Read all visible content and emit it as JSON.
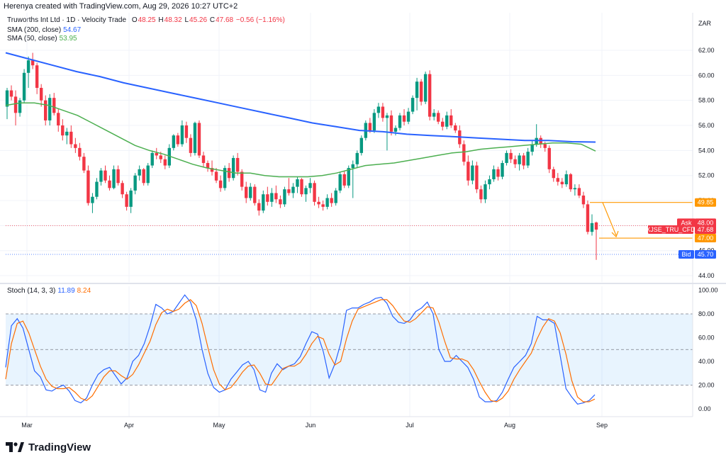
{
  "header": {
    "created_by": "Herenya created with TradingView.com, Aug 29, 2026 10:27 UTC+2"
  },
  "legend": {
    "symbol": "Truworths Int Ltd · 1D · Velocity Trade",
    "open_label": "O",
    "open": "48.25",
    "high_label": "H",
    "high": "48.32",
    "low_label": "L",
    "low": "45.26",
    "close_label": "C",
    "close": "47.68",
    "change": "−0.56 (−1.16%)",
    "sma200_label": "SMA (200, close)",
    "sma200_value": "54.67",
    "sma50_label": "SMA (50, close)",
    "sma50_value": "53.95",
    "stoch_label": "Stoch (14, 3, 3)",
    "stoch_k": "11.89",
    "stoch_d": "8.24"
  },
  "currency": "ZAR",
  "brand": "TradingView",
  "colors": {
    "up": "#089981",
    "down": "#f23645",
    "sma200": "#2962ff",
    "sma50": "#4caf50",
    "stoch_k": "#2962ff",
    "stoch_d": "#ff6d00",
    "target": "#ff9800",
    "ask": "#f23645",
    "bid": "#2962ff"
  },
  "chart_data": [
    {
      "type": "candlestick",
      "title": "Truworths Int Ltd · 1D · Velocity Trade",
      "ylim": [
        44,
        63
      ],
      "y_ticks": [
        "62.00",
        "60.00",
        "58.00",
        "56.00",
        "54.00",
        "52.00",
        "50.00",
        "48.00",
        "46.00",
        "44.00"
      ],
      "x_ticks": [
        "Mar",
        "Apr",
        "May",
        "Jun",
        "Jul",
        "Aug",
        "Sep"
      ],
      "price_tags": {
        "target_high": "49.85",
        "ask_label": "Ask",
        "ask": "48.00",
        "symbol_tag": "XJSE_TRU_CFD",
        "last": "47.68",
        "target_low": "47.00",
        "bid_label": "Bid",
        "bid": "45.70"
      },
      "candles": [
        [
          57.5,
          59.0,
          56.5,
          58.8
        ],
        [
          58.8,
          59.2,
          58.0,
          58.3
        ],
        [
          58.3,
          58.8,
          56.0,
          57.0
        ],
        [
          57.0,
          58.2,
          56.7,
          58.0
        ],
        [
          58.0,
          60.5,
          57.8,
          60.2
        ],
        [
          60.2,
          61.5,
          59.0,
          61.2
        ],
        [
          61.2,
          61.8,
          60.5,
          60.8
        ],
        [
          60.8,
          61.0,
          58.5,
          59.0
        ],
        [
          59.0,
          59.3,
          57.5,
          58.0
        ],
        [
          58.0,
          58.4,
          56.0,
          56.4
        ],
        [
          56.4,
          58.5,
          56.0,
          58.2
        ],
        [
          58.2,
          58.6,
          56.8,
          57.0
        ],
        [
          57.0,
          57.3,
          55.5,
          56.0
        ],
        [
          56.0,
          56.5,
          54.8,
          55.2
        ],
        [
          55.2,
          55.8,
          54.5,
          55.5
        ],
        [
          55.5,
          56.0,
          54.2,
          54.5
        ],
        [
          54.5,
          55.0,
          53.8,
          54.2
        ],
        [
          54.2,
          54.6,
          53.2,
          53.5
        ],
        [
          53.5,
          53.8,
          52.2,
          52.4
        ],
        [
          52.4,
          52.8,
          49.6,
          49.8
        ],
        [
          49.8,
          50.6,
          49.0,
          50.3
        ],
        [
          50.3,
          51.8,
          50.1,
          51.5
        ],
        [
          51.5,
          52.6,
          51.2,
          52.4
        ],
        [
          52.4,
          52.8,
          51.4,
          51.6
        ],
        [
          51.6,
          52.0,
          50.8,
          51.0
        ],
        [
          51.0,
          52.8,
          50.9,
          52.5
        ],
        [
          52.5,
          52.8,
          51.2,
          51.4
        ],
        [
          51.4,
          51.6,
          50.2,
          50.5
        ],
        [
          50.5,
          50.7,
          49.2,
          49.5
        ],
        [
          49.5,
          51.0,
          49.0,
          50.8
        ],
        [
          50.8,
          52.2,
          50.5,
          52.0
        ],
        [
          52.0,
          52.8,
          51.6,
          52.5
        ],
        [
          52.5,
          52.6,
          51.2,
          51.4
        ],
        [
          51.4,
          53.0,
          51.2,
          52.8
        ],
        [
          52.8,
          54.0,
          52.6,
          53.8
        ],
        [
          53.8,
          54.2,
          53.3,
          53.6
        ],
        [
          53.6,
          53.9,
          53.0,
          53.3
        ],
        [
          53.3,
          53.6,
          52.5,
          52.8
        ],
        [
          52.8,
          54.5,
          52.6,
          54.2
        ],
        [
          54.2,
          55.3,
          54.0,
          55.2
        ],
        [
          55.2,
          55.4,
          54.3,
          54.5
        ],
        [
          54.5,
          56.4,
          54.3,
          56.0
        ],
        [
          56.0,
          56.3,
          54.6,
          55.0
        ],
        [
          55.0,
          55.3,
          53.5,
          53.8
        ],
        [
          53.8,
          56.3,
          53.6,
          56.2
        ],
        [
          56.2,
          56.4,
          53.4,
          53.6
        ],
        [
          53.6,
          53.9,
          52.7,
          53.0
        ],
        [
          53.0,
          53.2,
          52.3,
          52.6
        ],
        [
          52.6,
          53.2,
          52.0,
          52.3
        ],
        [
          52.3,
          52.6,
          51.4,
          51.6
        ],
        [
          51.6,
          52.0,
          50.7,
          51.0
        ],
        [
          51.0,
          52.8,
          50.8,
          52.6
        ],
        [
          52.6,
          53.0,
          51.5,
          51.8
        ],
        [
          51.8,
          53.6,
          51.6,
          53.4
        ],
        [
          53.4,
          53.8,
          52.0,
          52.3
        ],
        [
          52.3,
          52.5,
          50.8,
          51.1
        ],
        [
          51.1,
          51.5,
          49.8,
          50.2
        ],
        [
          50.2,
          51.4,
          50.0,
          51.1
        ],
        [
          51.1,
          51.3,
          49.6,
          49.8
        ],
        [
          49.8,
          50.1,
          48.8,
          49.2
        ],
        [
          49.2,
          50.8,
          49.0,
          50.5
        ],
        [
          50.5,
          51.1,
          49.6,
          49.9
        ],
        [
          49.9,
          51.0,
          49.5,
          50.6
        ],
        [
          50.6,
          51.2,
          49.8,
          50.1
        ],
        [
          50.1,
          50.4,
          49.4,
          49.7
        ],
        [
          49.7,
          51.1,
          49.5,
          50.9
        ],
        [
          50.9,
          51.8,
          50.4,
          50.6
        ],
        [
          50.6,
          51.4,
          50.2,
          51.1
        ],
        [
          51.1,
          51.9,
          50.6,
          51.7
        ],
        [
          51.7,
          51.8,
          50.3,
          50.5
        ],
        [
          50.5,
          51.2,
          49.9,
          51.0
        ],
        [
          51.0,
          51.8,
          50.6,
          51.4
        ],
        [
          51.4,
          51.6,
          49.6,
          49.9
        ],
        [
          49.9,
          50.3,
          49.4,
          49.7
        ],
        [
          49.7,
          50.0,
          49.2,
          49.5
        ],
        [
          49.5,
          50.5,
          49.3,
          50.2
        ],
        [
          50.2,
          50.6,
          49.5,
          49.8
        ],
        [
          49.8,
          51.0,
          49.6,
          50.8
        ],
        [
          50.8,
          52.3,
          50.6,
          52.1
        ],
        [
          52.1,
          52.4,
          51.0,
          51.2
        ],
        [
          51.2,
          52.8,
          51.0,
          52.6
        ],
        [
          52.6,
          53.2,
          50.2,
          52.9
        ],
        [
          52.9,
          54.0,
          52.6,
          53.8
        ],
        [
          53.8,
          55.2,
          53.6,
          55.0
        ],
        [
          55.0,
          56.4,
          54.8,
          56.2
        ],
        [
          56.2,
          56.6,
          55.4,
          55.6
        ],
        [
          55.6,
          57.3,
          55.4,
          57.0
        ],
        [
          57.0,
          57.8,
          56.6,
          57.5
        ],
        [
          57.5,
          57.8,
          56.3,
          56.6
        ],
        [
          56.6,
          57.0,
          54.0,
          56.8
        ],
        [
          56.8,
          57.2,
          55.2,
          55.5
        ],
        [
          55.5,
          56.0,
          55.2,
          55.8
        ],
        [
          55.8,
          57.0,
          55.6,
          56.8
        ],
        [
          56.8,
          57.3,
          56.0,
          56.3
        ],
        [
          56.3,
          57.4,
          56.1,
          57.1
        ],
        [
          57.1,
          58.4,
          56.9,
          58.2
        ],
        [
          58.2,
          59.8,
          57.2,
          59.5
        ],
        [
          59.5,
          59.7,
          57.6,
          57.9
        ],
        [
          57.9,
          60.3,
          57.7,
          60.1
        ],
        [
          60.1,
          60.4,
          56.4,
          56.7
        ],
        [
          56.7,
          57.3,
          56.4,
          57.0
        ],
        [
          57.0,
          57.2,
          56.1,
          56.3
        ],
        [
          56.3,
          56.6,
          55.6,
          55.9
        ],
        [
          55.9,
          57.1,
          55.7,
          56.8
        ],
        [
          56.8,
          57.3,
          55.8,
          56.0
        ],
        [
          56.0,
          56.2,
          55.4,
          55.6
        ],
        [
          55.6,
          56.0,
          54.2,
          54.5
        ],
        [
          54.5,
          54.8,
          52.8,
          53.1
        ],
        [
          53.1,
          53.6,
          51.2,
          51.6
        ],
        [
          51.6,
          53.2,
          51.3,
          52.8
        ],
        [
          52.8,
          53.1,
          50.6,
          50.9
        ],
        [
          50.9,
          51.2,
          49.8,
          50.1
        ],
        [
          50.1,
          51.6,
          49.8,
          51.3
        ],
        [
          51.3,
          52.0,
          50.9,
          51.7
        ],
        [
          51.7,
          52.8,
          51.5,
          52.5
        ],
        [
          52.5,
          52.7,
          51.6,
          51.9
        ],
        [
          51.9,
          53.2,
          51.7,
          53.0
        ],
        [
          53.0,
          54.0,
          52.8,
          53.8
        ],
        [
          53.8,
          54.1,
          53.0,
          53.3
        ],
        [
          53.3,
          53.6,
          52.6,
          52.9
        ],
        [
          52.9,
          53.8,
          52.4,
          53.6
        ],
        [
          53.6,
          53.8,
          52.5,
          52.8
        ],
        [
          52.8,
          54.2,
          52.6,
          53.9
        ],
        [
          53.9,
          54.8,
          53.6,
          54.5
        ],
        [
          54.5,
          56.1,
          54.3,
          55.0
        ],
        [
          55.0,
          55.2,
          54.2,
          54.5
        ],
        [
          54.5,
          54.7,
          53.9,
          54.2
        ],
        [
          54.2,
          54.4,
          52.2,
          52.5
        ],
        [
          52.5,
          52.7,
          51.5,
          51.8
        ],
        [
          51.8,
          52.2,
          51.2,
          51.5
        ],
        [
          51.5,
          51.8,
          51.0,
          51.3
        ],
        [
          51.3,
          52.4,
          51.1,
          52.1
        ],
        [
          52.1,
          52.2,
          50.7,
          50.9
        ],
        [
          50.9,
          51.3,
          50.4,
          51.0
        ],
        [
          51.0,
          51.3,
          50.2,
          50.4
        ],
        [
          50.4,
          50.7,
          49.4,
          49.7
        ],
        [
          49.7,
          50.0,
          47.3,
          47.5
        ],
        [
          47.5,
          48.9,
          47.2,
          48.2
        ],
        [
          48.25,
          48.32,
          45.26,
          47.68
        ]
      ],
      "sma200": [
        61.8,
        61.3,
        60.8,
        60.3,
        59.9,
        59.4,
        59.0,
        58.6,
        58.2,
        57.8,
        57.4,
        57.0,
        56.6,
        56.2,
        55.9,
        55.6,
        55.5,
        55.3,
        55.2,
        55.1,
        55.0,
        54.9,
        54.8,
        54.8,
        54.7,
        54.67
      ],
      "sma50": [
        57.6,
        57.8,
        57.8,
        57.6,
        57.2,
        56.8,
        56.2,
        55.6,
        55.0,
        54.4,
        54.0,
        53.7,
        53.3,
        52.9,
        52.6,
        52.4,
        52.2,
        52.2,
        52.0,
        51.9,
        51.9,
        51.9,
        52.0,
        52.2,
        52.5,
        52.8,
        52.9,
        53.0,
        53.2,
        53.4,
        53.6,
        53.8,
        53.9,
        54.1,
        54.2,
        54.3,
        54.4,
        54.5,
        54.6,
        54.6,
        54.5,
        53.95
      ]
    },
    {
      "type": "line",
      "title": "Stoch (14, 3, 3)",
      "ylim": [
        -8,
        100
      ],
      "y_ticks": [
        "100.00",
        "80.00",
        "60.00",
        "40.00",
        "20.00",
        "0.00"
      ],
      "band": [
        20,
        80
      ],
      "series": [
        {
          "name": "%K",
          "values": [
            35,
            70,
            76,
            68,
            50,
            32,
            27,
            16,
            15,
            18,
            20,
            15,
            7,
            5,
            9,
            20,
            29,
            33,
            35,
            28,
            21,
            26,
            40,
            45,
            55,
            70,
            88,
            85,
            80,
            82,
            89,
            96,
            90,
            75,
            50,
            30,
            18,
            14,
            16,
            25,
            31,
            37,
            40,
            33,
            16,
            14,
            30,
            38,
            33,
            36,
            38,
            44,
            55,
            65,
            63,
            48,
            26,
            38,
            55,
            83,
            85,
            85,
            88,
            90,
            93,
            94,
            89,
            78,
            73,
            72,
            75,
            82,
            85,
            90,
            80,
            50,
            40,
            40,
            45,
            40,
            35,
            25,
            10,
            6,
            6,
            7,
            14,
            25,
            35,
            40,
            45,
            55,
            78,
            75,
            75,
            72,
            45,
            17,
            10,
            4,
            5,
            7,
            11.89
          ]
        },
        {
          "name": "%D",
          "values": [
            25,
            55,
            72,
            74,
            64,
            50,
            36,
            25,
            19,
            17,
            17,
            18,
            14,
            9,
            7,
            11,
            19,
            27,
            32,
            32,
            28,
            25,
            29,
            37,
            47,
            57,
            71,
            81,
            84,
            82,
            84,
            89,
            92,
            87,
            72,
            52,
            33,
            21,
            16,
            18,
            24,
            31,
            36,
            37,
            30,
            21,
            20,
            27,
            34,
            36,
            36,
            39,
            46,
            55,
            61,
            59,
            46,
            37,
            40,
            59,
            74,
            84,
            86,
            88,
            90,
            92,
            92,
            87,
            80,
            74,
            73,
            76,
            81,
            86,
            85,
            73,
            57,
            43,
            42,
            42,
            40,
            33,
            23,
            14,
            7,
            6,
            9,
            15,
            25,
            33,
            40,
            47,
            59,
            69,
            76,
            74,
            64,
            46,
            24,
            10,
            6,
            6,
            8.24
          ]
        }
      ]
    }
  ]
}
